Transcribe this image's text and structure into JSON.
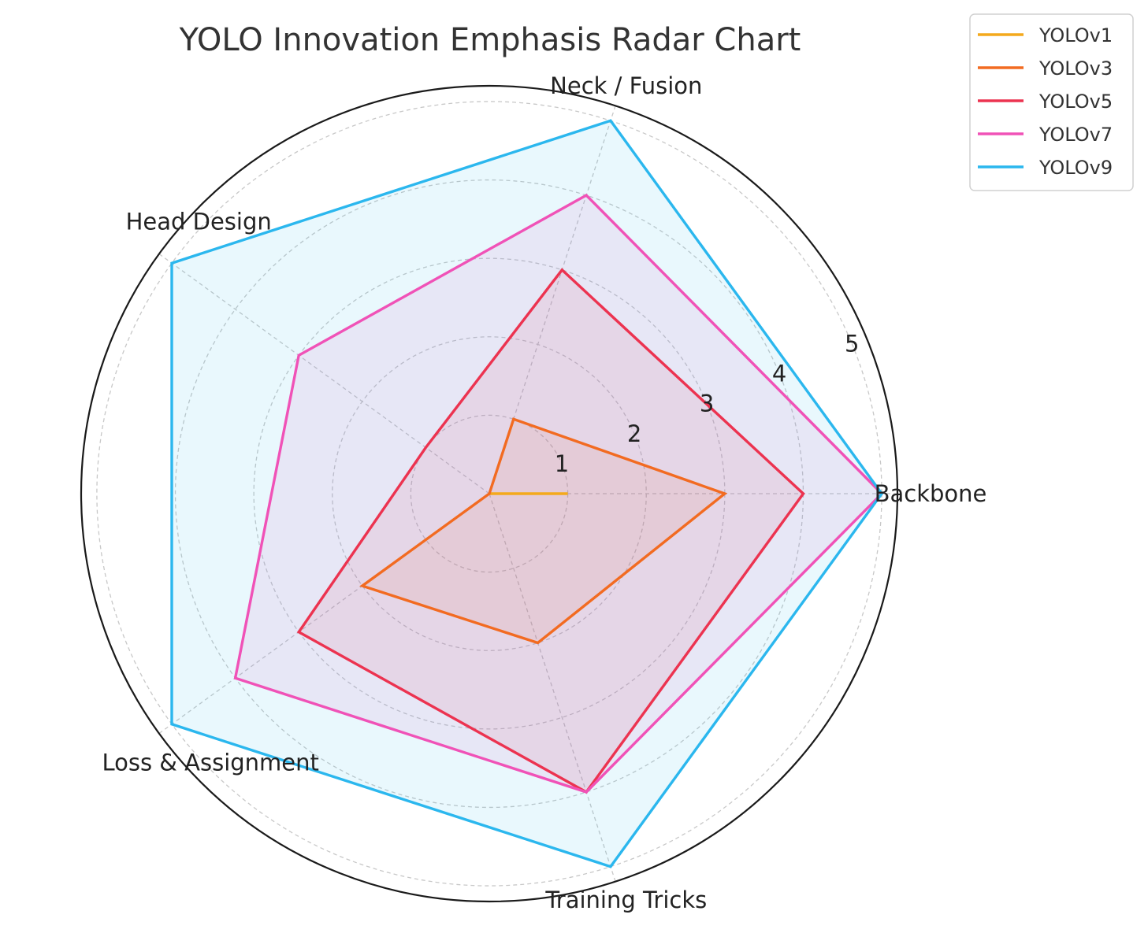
{
  "chart_data": {
    "type": "radar",
    "title": "YOLO Innovation Emphasis Radar Chart",
    "axes": [
      "Backbone",
      "Neck / Fusion",
      "Head Design",
      "Loss & Assignment",
      "Training Tricks"
    ],
    "rlim": [
      0,
      5.2
    ],
    "rticks": [
      1,
      2,
      3,
      4,
      5
    ],
    "grid": true,
    "legend_position": "top-right",
    "series": [
      {
        "name": "YOLOv1",
        "color": "#F4A91C",
        "values": [
          1,
          0,
          0,
          0,
          0
        ]
      },
      {
        "name": "YOLOv3",
        "color": "#F26B21",
        "values": [
          3,
          1,
          0,
          2,
          2
        ]
      },
      {
        "name": "YOLOv5",
        "color": "#EC3350",
        "values": [
          4,
          3,
          1,
          3,
          4
        ]
      },
      {
        "name": "YOLOv7",
        "color": "#F052B7",
        "values": [
          5,
          4,
          3,
          4,
          4
        ]
      },
      {
        "name": "YOLOv9",
        "color": "#2BB7EE",
        "values": [
          5,
          5,
          5,
          5,
          5
        ]
      }
    ]
  }
}
